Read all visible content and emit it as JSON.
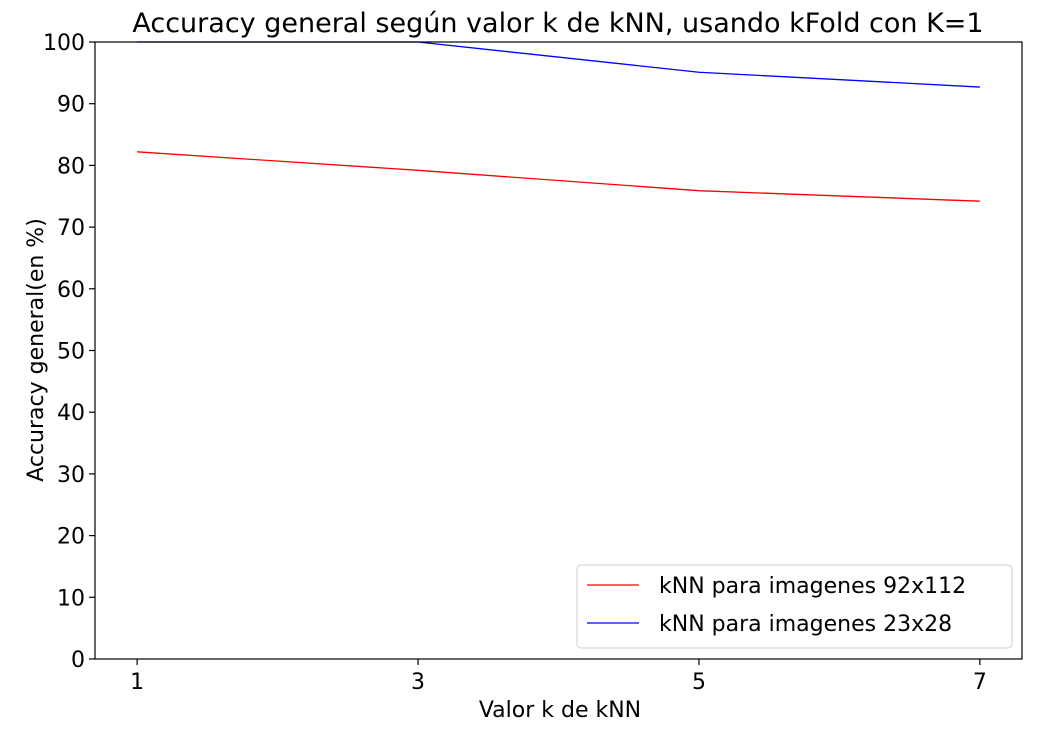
{
  "chart_data": {
    "type": "line",
    "title": "Accuracy general según valor k de kNN, usando kFold con K=1",
    "xlabel": "Valor k de kNN",
    "ylabel": "Accuracy general(en %)",
    "x": [
      1,
      3,
      5,
      7
    ],
    "xticks": [
      "1",
      "3",
      "5",
      "7"
    ],
    "xlim": [
      0.7,
      7.3
    ],
    "ylim": [
      0,
      100
    ],
    "yticks": [
      "0",
      "10",
      "20",
      "30",
      "40",
      "50",
      "60",
      "70",
      "80",
      "90",
      "100"
    ],
    "series": [
      {
        "name": "kNN para imagenes 92x112",
        "color": "#ff0000",
        "values": [
          82.2,
          79.2,
          75.9,
          74.2
        ]
      },
      {
        "name": "kNN para imagenes 23x28",
        "color": "#0000ff",
        "values": [
          100,
          100,
          95.1,
          92.7
        ]
      }
    ],
    "legend": "bottom-right",
    "grid": false
  }
}
